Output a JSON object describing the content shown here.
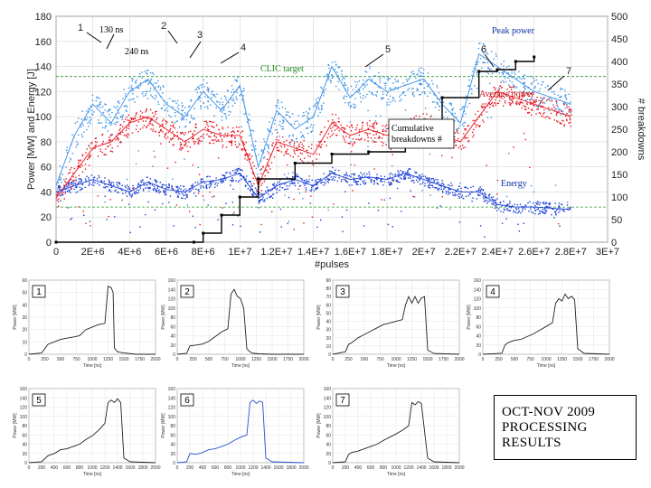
{
  "chart_data": [
    {
      "type": "scatter",
      "title": "",
      "xlabel": "#pulses",
      "ylabel": "Power [MW] and Energy [J]",
      "y2label": "# breakdowns",
      "xlim": [
        0,
        30000000
      ],
      "ylim": [
        0,
        180
      ],
      "y2lim": [
        0,
        500
      ],
      "x_ticks": [
        "0",
        "2E+6",
        "4E+6",
        "6E+6",
        "8E+6",
        "1E+7",
        "1.2E+7",
        "1.4E+7",
        "1.6E+7",
        "1.8E+7",
        "2E+7",
        "2.2E+7",
        "2.4E+7",
        "2.6E+7",
        "2.8E+7",
        "3E+7"
      ],
      "y_ticks": [
        "0",
        "20",
        "40",
        "60",
        "80",
        "100",
        "120",
        "140",
        "160",
        "180"
      ],
      "y2_ticks": [
        "0",
        "50",
        "100",
        "150",
        "200",
        "250",
        "300",
        "350",
        "400",
        "450",
        "500"
      ],
      "series": [
        {
          "name": "Peak power",
          "color": "#3a8fe6",
          "x": [
            0,
            1000000,
            2000000,
            3000000,
            4000000,
            5000000,
            6000000,
            7000000,
            8000000,
            9000000,
            10000000,
            11000000,
            12000000,
            13000000,
            14000000,
            15000000,
            16000000,
            17000000,
            18000000,
            19000000,
            20000000,
            21000000,
            22000000,
            23000000,
            24000000,
            25000000,
            26000000,
            27000000,
            28000000
          ],
          "values": [
            45,
            85,
            110,
            95,
            120,
            130,
            110,
            100,
            120,
            105,
            125,
            60,
            105,
            90,
            100,
            140,
            115,
            130,
            120,
            125,
            130,
            110,
            95,
            150,
            140,
            130,
            120,
            115,
            110
          ]
        },
        {
          "name": "Average power",
          "color": "#e8141e",
          "x": [
            0,
            1000000,
            2000000,
            3000000,
            4000000,
            5000000,
            6000000,
            7000000,
            8000000,
            9000000,
            10000000,
            11000000,
            12000000,
            13000000,
            14000000,
            15000000,
            16000000,
            17000000,
            18000000,
            19000000,
            20000000,
            21000000,
            22000000,
            23000000,
            24000000,
            25000000,
            26000000,
            27000000,
            28000000
          ],
          "values": [
            35,
            55,
            75,
            80,
            95,
            100,
            90,
            80,
            90,
            85,
            85,
            45,
            80,
            75,
            70,
            95,
            85,
            90,
            85,
            90,
            95,
            85,
            80,
            100,
            120,
            115,
            110,
            105,
            100
          ]
        },
        {
          "name": "Energy",
          "color": "#1a3fd6",
          "x": [
            0,
            1000000,
            2000000,
            3000000,
            4000000,
            5000000,
            6000000,
            7000000,
            8000000,
            9000000,
            10000000,
            11000000,
            12000000,
            13000000,
            14000000,
            15000000,
            16000000,
            17000000,
            18000000,
            19000000,
            20000000,
            21000000,
            22000000,
            23000000,
            24000000,
            25000000,
            26000000,
            27000000,
            28000000
          ],
          "values": [
            40,
            45,
            50,
            45,
            40,
            48,
            42,
            40,
            48,
            50,
            55,
            35,
            45,
            50,
            45,
            55,
            50,
            52,
            50,
            55,
            50,
            45,
            40,
            40,
            30,
            28,
            28,
            27,
            26
          ]
        },
        {
          "name": "Cumulative breakdowns #",
          "color": "#000000",
          "x": [
            0,
            7500000,
            8000000,
            9000000,
            10000000,
            11000000,
            13000000,
            15000000,
            17000000,
            19000000,
            20000000,
            21000000,
            23000000,
            24000000,
            25000000,
            26000000
          ],
          "values": [
            0,
            0,
            20,
            60,
            100,
            140,
            175,
            195,
            200,
            240,
            270,
            320,
            378,
            382,
            400,
            410
          ]
        }
      ],
      "reference_lines": {
        "clic_target_power": 132,
        "low_dashed_level": 28
      },
      "annotations": {
        "markers": [
          "1",
          "2",
          "3",
          "4",
          "5",
          "6",
          "7"
        ],
        "pulse_130": "130 ns",
        "pulse_240": "240 ns",
        "peak_power": "Peak power",
        "clic_target": "CLIC target",
        "average_power": "Average power",
        "cumulative": "Cumulative breakdowns #",
        "energy": "Energy"
      }
    },
    {
      "type": "line",
      "panels": [
        {
          "label": "1",
          "ylabel": "Power [MW]",
          "xlabel": "Time [ns]",
          "x_ticks": [
            "0",
            "250",
            "500",
            "750",
            "1000",
            "1250",
            "1500",
            "1750",
            "2000"
          ],
          "y_ticks": [
            "0",
            "10",
            "20",
            "30",
            "40",
            "50",
            "60"
          ],
          "x": [
            0,
            200,
            300,
            400,
            500,
            600,
            700,
            800,
            900,
            1000,
            1100,
            1200,
            1250,
            1300,
            1330,
            1350,
            1400,
            1500,
            1700,
            2000
          ],
          "values": [
            0,
            1,
            8,
            10,
            12,
            13,
            14,
            15,
            20,
            22,
            24,
            25,
            55,
            54,
            50,
            5,
            2,
            1,
            0,
            0
          ],
          "color": "#222222"
        },
        {
          "label": "2",
          "ylabel": "Power [MW]",
          "xlabel": "Time [ns]",
          "x_ticks": [
            "0",
            "250",
            "500",
            "750",
            "1000",
            "1250",
            "1500",
            "1750",
            "2000"
          ],
          "y_ticks": [
            "0",
            "20",
            "40",
            "60",
            "80",
            "100",
            "120",
            "140",
            "160"
          ],
          "x": [
            0,
            150,
            200,
            300,
            400,
            500,
            600,
            700,
            800,
            850,
            900,
            950,
            1000,
            1050,
            1100,
            1150,
            1200,
            1300,
            1500,
            2000
          ],
          "values": [
            0,
            2,
            18,
            20,
            22,
            28,
            38,
            48,
            55,
            130,
            140,
            125,
            120,
            100,
            12,
            5,
            2,
            1,
            0,
            0
          ],
          "color": "#222222"
        },
        {
          "label": "3",
          "ylabel": "Power [MW]",
          "xlabel": "Time [ns]",
          "x_ticks": [
            "0",
            "250",
            "500",
            "750",
            "1000",
            "1250",
            "1500",
            "1750",
            "2000"
          ],
          "y_ticks": [
            "0",
            "10",
            "20",
            "30",
            "40",
            "50",
            "60",
            "70",
            "80",
            "90"
          ],
          "x": [
            0,
            200,
            250,
            300,
            400,
            500,
            600,
            700,
            800,
            900,
            1000,
            1100,
            1150,
            1200,
            1250,
            1300,
            1350,
            1400,
            1450,
            1500,
            1600,
            2000
          ],
          "values": [
            0,
            3,
            12,
            14,
            20,
            24,
            28,
            32,
            36,
            38,
            40,
            42,
            60,
            70,
            62,
            70,
            62,
            68,
            70,
            5,
            1,
            0
          ],
          "color": "#222222"
        },
        {
          "label": "4",
          "ylabel": "Power [MW]",
          "xlabel": "Time [ns]",
          "x_ticks": [
            "0",
            "250",
            "500",
            "750",
            "1000",
            "1250",
            "1500",
            "1750",
            "2000"
          ],
          "y_ticks": [
            "0",
            "20",
            "40",
            "60",
            "80",
            "100",
            "120",
            "140",
            "160"
          ],
          "x": [
            0,
            300,
            350,
            400,
            500,
            600,
            700,
            800,
            900,
            1000,
            1100,
            1150,
            1200,
            1250,
            1300,
            1350,
            1400,
            1450,
            1500,
            1600,
            2000
          ],
          "values": [
            0,
            2,
            20,
            25,
            30,
            32,
            38,
            44,
            52,
            60,
            68,
            110,
            120,
            115,
            130,
            120,
            125,
            118,
            12,
            2,
            0
          ],
          "color": "#222222"
        },
        {
          "label": "5",
          "ylabel": "Power [MW]",
          "xlabel": "Time [ns]",
          "x_ticks": [
            "0",
            "200",
            "400",
            "600",
            "800",
            "1000",
            "1200",
            "1400",
            "1600",
            "1800",
            "2000"
          ],
          "y_ticks": [
            "0",
            "20",
            "40",
            "60",
            "80",
            "100",
            "120",
            "140",
            "160"
          ],
          "x": [
            0,
            200,
            300,
            400,
            500,
            600,
            700,
            800,
            900,
            1000,
            1100,
            1200,
            1250,
            1300,
            1350,
            1400,
            1450,
            1500,
            1600,
            2000
          ],
          "values": [
            0,
            2,
            15,
            20,
            28,
            30,
            35,
            40,
            50,
            58,
            70,
            85,
            130,
            135,
            130,
            138,
            130,
            10,
            2,
            0
          ],
          "color": "#222222"
        },
        {
          "label": "6",
          "ylabel": "Power [MW]",
          "xlabel": "Time [ns]",
          "x_ticks": [
            "0",
            "200",
            "400",
            "600",
            "800",
            "1000",
            "1200",
            "1400",
            "1600",
            "1800",
            "2000"
          ],
          "y_ticks": [
            "0",
            "20",
            "40",
            "60",
            "80",
            "100",
            "120",
            "140",
            "160"
          ],
          "x": [
            0,
            150,
            200,
            300,
            400,
            500,
            600,
            700,
            800,
            900,
            1000,
            1100,
            1150,
            1200,
            1250,
            1300,
            1350,
            1400,
            1500,
            2000
          ],
          "values": [
            0,
            2,
            20,
            18,
            22,
            28,
            30,
            35,
            40,
            48,
            55,
            60,
            130,
            135,
            128,
            133,
            130,
            10,
            2,
            0
          ],
          "color": "#2a4fd0"
        },
        {
          "label": "7",
          "ylabel": "Power [MW]",
          "xlabel": "Time [ns]",
          "x_ticks": [
            "0",
            "200",
            "400",
            "600",
            "800",
            "1000",
            "1200",
            "1400",
            "1600",
            "1800",
            "2000"
          ],
          "y_ticks": [
            "0",
            "20",
            "40",
            "60",
            "80",
            "100",
            "120",
            "140",
            "160"
          ],
          "x": [
            0,
            200,
            250,
            300,
            400,
            500,
            600,
            700,
            800,
            900,
            1000,
            1100,
            1200,
            1250,
            1300,
            1350,
            1400,
            1500,
            1600,
            2000
          ],
          "values": [
            0,
            2,
            18,
            22,
            25,
            30,
            35,
            40,
            48,
            55,
            62,
            70,
            80,
            130,
            125,
            132,
            128,
            10,
            2,
            0
          ],
          "color": "#222222"
        }
      ]
    }
  ],
  "results_box": {
    "line1": "OCT-NOV 2009",
    "line2": "PROCESSING",
    "line3": "RESULTS"
  }
}
